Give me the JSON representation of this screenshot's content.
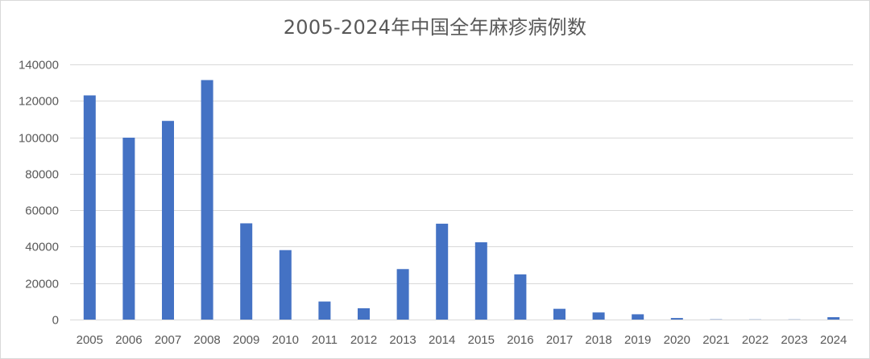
{
  "chart_data": {
    "type": "bar",
    "title": "2005-2024年中国全年麻疹病例数",
    "xlabel": "",
    "ylabel": "",
    "categories": [
      "2005",
      "2006",
      "2007",
      "2008",
      "2009",
      "2010",
      "2011",
      "2012",
      "2013",
      "2014",
      "2015",
      "2016",
      "2017",
      "2018",
      "2019",
      "2020",
      "2021",
      "2022",
      "2023",
      "2024"
    ],
    "values": [
      123000,
      99800,
      109000,
      131400,
      52800,
      38100,
      9900,
      6200,
      27700,
      52600,
      42400,
      24800,
      5900,
      3900,
      2900,
      850,
      150,
      100,
      100,
      1300
    ],
    "ylim": [
      0,
      140000
    ],
    "yticks": [
      0,
      20000,
      40000,
      60000,
      80000,
      100000,
      120000,
      140000
    ],
    "bar_color": "#4472c4",
    "grid": true,
    "gridline_color": "#d9d9d9",
    "legend": "none"
  }
}
